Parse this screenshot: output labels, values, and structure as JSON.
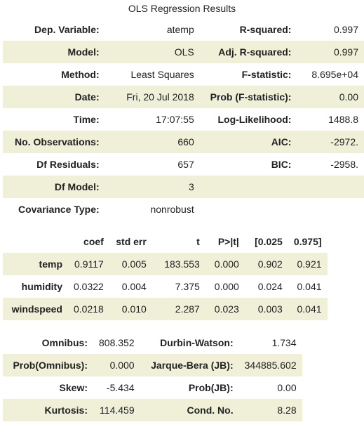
{
  "caption": "OLS Regression Results",
  "summary": {
    "rows": [
      {
        "label1": "Dep. Variable:",
        "value1": "atemp",
        "label2": "R-squared:",
        "value2": "0.997"
      },
      {
        "label1": "Model:",
        "value1": "OLS",
        "label2": "Adj. R-squared:",
        "value2": "0.997"
      },
      {
        "label1": "Method:",
        "value1": "Least Squares",
        "label2": "F-statistic:",
        "value2": "8.695e+04"
      },
      {
        "label1": "Date:",
        "value1": "Fri, 20 Jul 2018",
        "label2": "Prob (F-statistic):",
        "value2": "0.00"
      },
      {
        "label1": "Time:",
        "value1": "17:07:55",
        "label2": "Log-Likelihood:",
        "value2": "1488.8"
      },
      {
        "label1": "No. Observations:",
        "value1": "660",
        "label2": "AIC:",
        "value2": "-2972."
      },
      {
        "label1": "Df Residuals:",
        "value1": "657",
        "label2": "BIC:",
        "value2": "-2958."
      },
      {
        "label1": "Df Model:",
        "value1": "3",
        "label2": "",
        "value2": ""
      },
      {
        "label1": "Covariance Type:",
        "value1": "nonrobust",
        "label2": "",
        "value2": ""
      }
    ]
  },
  "coefficients": {
    "headers": [
      "",
      "coef",
      "std err",
      "t",
      "P>|t|",
      "[0.025",
      "0.975]"
    ],
    "rows": [
      {
        "name": "temp",
        "coef": "0.9117",
        "std_err": "0.005",
        "t": "183.553",
        "p": "0.000",
        "lo": "0.902",
        "hi": "0.921"
      },
      {
        "name": "humidity",
        "coef": "0.0322",
        "std_err": "0.004",
        "t": "7.375",
        "p": "0.000",
        "lo": "0.024",
        "hi": "0.041"
      },
      {
        "name": "windspeed",
        "coef": "0.0218",
        "std_err": "0.010",
        "t": "2.287",
        "p": "0.023",
        "lo": "0.003",
        "hi": "0.041"
      }
    ]
  },
  "diagnostics": {
    "rows": [
      {
        "label1": "Omnibus:",
        "value1": "808.352",
        "label2": "Durbin-Watson:",
        "value2": "1.734"
      },
      {
        "label1": "Prob(Omnibus):",
        "value1": "0.000",
        "label2": "Jarque-Bera (JB):",
        "value2": "344885.602"
      },
      {
        "label1": "Skew:",
        "value1": "-5.434",
        "label2": "Prob(JB):",
        "value2": "0.00"
      },
      {
        "label1": "Kurtosis:",
        "value1": "114.459",
        "label2": "Cond. No.",
        "value2": "8.28"
      }
    ]
  },
  "colors": {
    "row_shade": "#f0f0d8",
    "text": "#222222"
  }
}
